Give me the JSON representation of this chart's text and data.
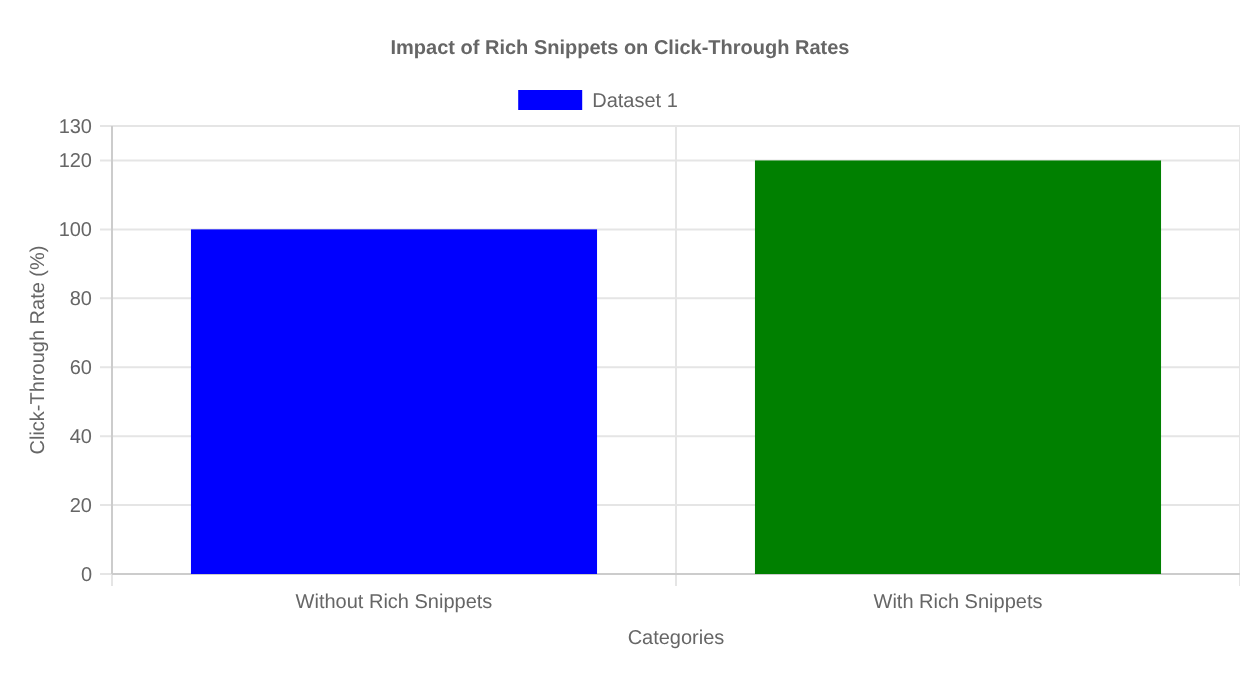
{
  "chart_data": {
    "type": "bar",
    "title": "Impact of Rich Snippets on Click-Through Rates",
    "xlabel": "Categories",
    "ylabel": "Click-Through Rate (%)",
    "categories": [
      "Without Rich Snippets",
      "With Rich Snippets"
    ],
    "series": [
      {
        "name": "Dataset 1",
        "color": "#0000ff",
        "colors": [
          "#0000ff",
          "#008000"
        ],
        "values": [
          100,
          120
        ]
      }
    ],
    "ylim": [
      0,
      130
    ],
    "yticks": [
      0,
      20,
      40,
      60,
      80,
      100,
      120,
      130
    ],
    "grid": true,
    "legend": "top"
  }
}
